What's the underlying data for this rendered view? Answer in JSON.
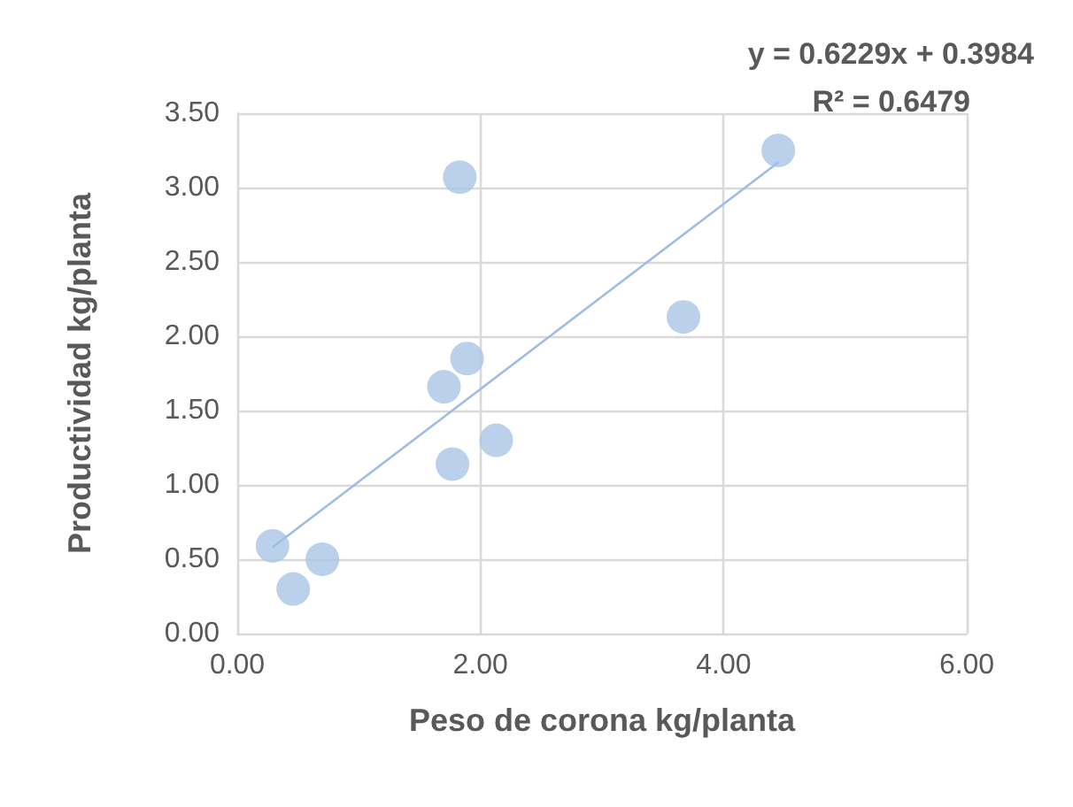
{
  "chart_data": {
    "type": "scatter",
    "xlabel": "Peso de corona kg/planta",
    "ylabel": "Productividad kg/planta",
    "annotations": [
      "y = 0.6229x + 0.3984",
      "R² = 0.6479"
    ],
    "series": [
      {
        "color": "#a9c4e6",
        "x": [
          0.29,
          0.46,
          0.7,
          1.7,
          1.89,
          1.83,
          1.77,
          2.13,
          3.67,
          4.45
        ],
        "values": [
          0.59,
          0.3,
          0.5,
          1.66,
          1.85,
          3.07,
          1.14,
          1.3,
          2.13,
          3.25
        ]
      },
      {
        "type": "line",
        "marker": "none",
        "color": "#9dbde6",
        "x": [
          0.29,
          4.45
        ],
        "values": [
          0.58,
          3.17
        ]
      }
    ],
    "xlim": [
      0,
      6
    ],
    "ylim": [
      0,
      3.5
    ],
    "xticks": [
      {
        "value": 0,
        "label": "0.00"
      },
      {
        "value": 2,
        "label": "2.00"
      },
      {
        "value": 4,
        "label": "4.00"
      },
      {
        "value": 6,
        "label": "6.00"
      }
    ],
    "yticks": [
      {
        "value": 0,
        "label": "0.00"
      },
      {
        "value": 0.5,
        "label": "0.50"
      },
      {
        "value": 1,
        "label": "1.00"
      },
      {
        "value": 1.5,
        "label": "1.50"
      },
      {
        "value": 2,
        "label": "2.00"
      },
      {
        "value": 2.5,
        "label": "2.50"
      },
      {
        "value": 3,
        "label": "3.00"
      },
      {
        "value": 3.5,
        "label": "3.50"
      }
    ],
    "grid": true,
    "marker": "circle"
  }
}
